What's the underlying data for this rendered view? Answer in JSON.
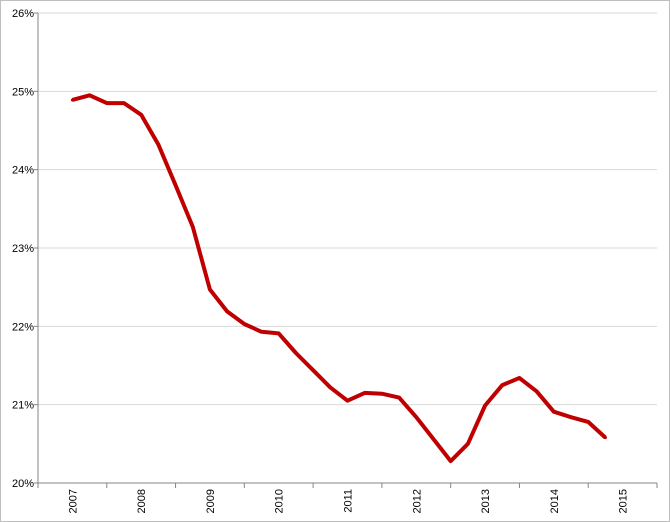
{
  "chart_data": {
    "type": "line",
    "title": "",
    "xlabel": "",
    "ylabel": "",
    "x_tick_labels": [
      "2007",
      "2008",
      "2009",
      "2010",
      "2011",
      "2012",
      "2013",
      "2014",
      "2015"
    ],
    "y_tick_labels": [
      "20%",
      "21%",
      "22%",
      "23%",
      "24%",
      "25%",
      "26%"
    ],
    "ylim": [
      20,
      26
    ],
    "xlim": [
      2007.0,
      2016.0
    ],
    "grid": "horizontal",
    "legend": "none",
    "line_color": "#c00000",
    "series": [
      {
        "x": [
          2007.5,
          2007.75,
          2008.0,
          2008.25,
          2008.5,
          2008.75,
          2009.0,
          2009.25,
          2009.5,
          2009.75,
          2010.0,
          2010.25,
          2010.5,
          2010.75,
          2011.0,
          2011.25,
          2011.5,
          2011.75,
          2012.0,
          2012.25,
          2012.5,
          2012.75,
          2013.0,
          2013.25,
          2013.5,
          2013.75,
          2014.0,
          2014.25,
          2014.5,
          2014.75,
          2015.0,
          2015.25
        ],
        "values": [
          24.89,
          24.95,
          24.85,
          24.85,
          24.7,
          24.32,
          23.8,
          23.27,
          22.47,
          22.19,
          22.03,
          21.93,
          21.91,
          21.66,
          21.44,
          21.22,
          21.05,
          21.15,
          21.14,
          21.09,
          20.84,
          20.56,
          20.28,
          20.5,
          20.99,
          21.25,
          21.34,
          21.17,
          20.91,
          20.84,
          20.78,
          20.58
        ]
      }
    ]
  }
}
